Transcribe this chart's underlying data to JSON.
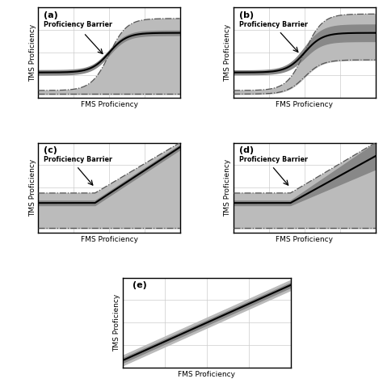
{
  "subplot_labels": [
    "(a)",
    "(b)",
    "(c)",
    "(d)",
    "(e)"
  ],
  "xlabel": "FMS Proficiency",
  "ylabel": "TMS Proficiency",
  "barrier_text": "Proficiency Barrier",
  "background": "#ffffff",
  "fill_color": "#bbbbbb",
  "band_color": "#888888",
  "line_color": "#000000",
  "dash_color": "#555555",
  "gridline_color": "#cccccc"
}
